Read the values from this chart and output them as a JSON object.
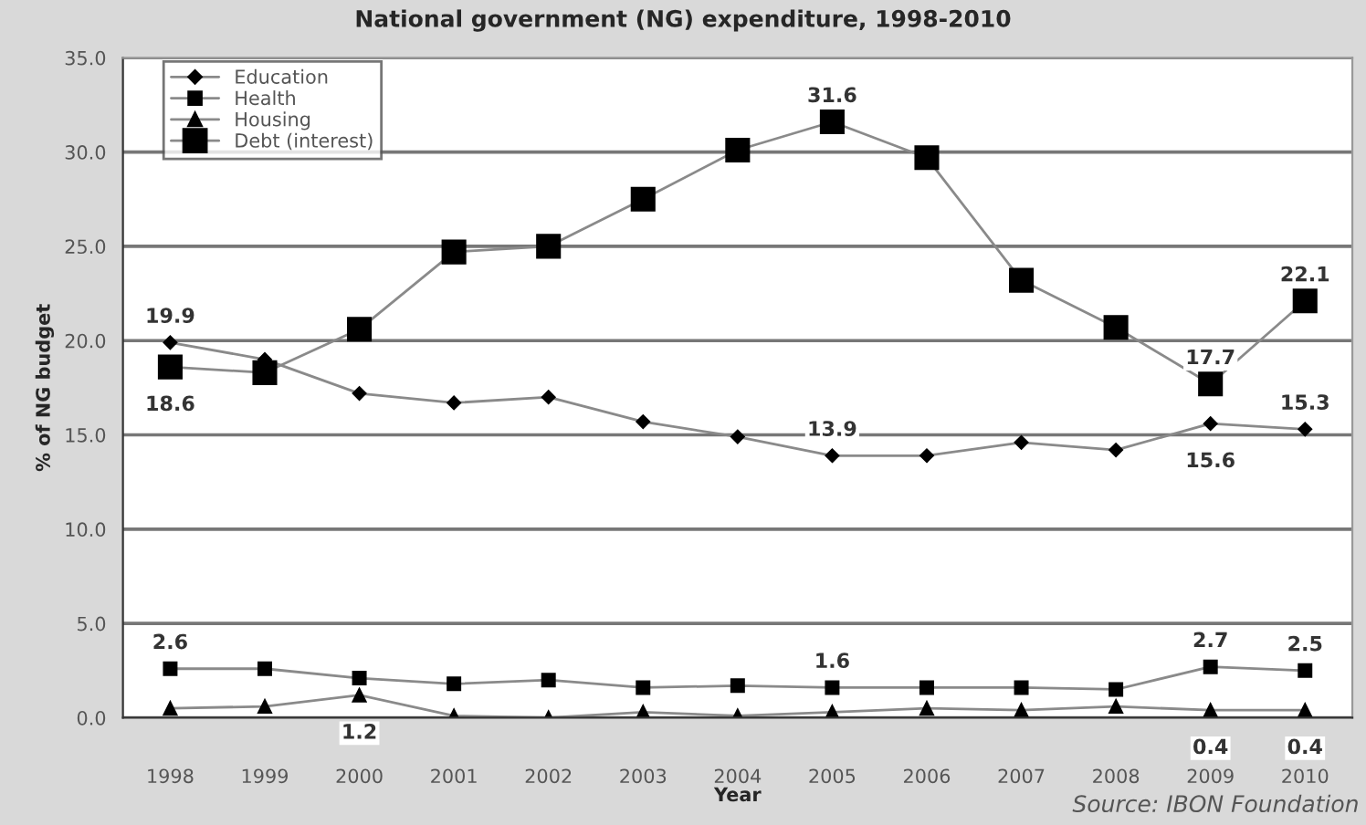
{
  "chart_data": {
    "type": "line",
    "title": "National government (NG) expenditure, 1998-2010",
    "xlabel": "Year",
    "ylabel": "% of NG budget",
    "categories": [
      "1998",
      "1999",
      "2000",
      "2001",
      "2002",
      "2003",
      "2004",
      "2005",
      "2006",
      "2007",
      "2008",
      "2009",
      "2010"
    ],
    "series": [
      {
        "name": "Education",
        "color": "#000000",
        "marker": "diamond",
        "values": [
          19.9,
          19.0,
          17.2,
          16.7,
          17.0,
          15.7,
          14.9,
          13.9,
          13.9,
          14.6,
          14.2,
          15.6,
          15.3
        ],
        "value_labels": [
          "19.9",
          null,
          null,
          null,
          null,
          null,
          null,
          "13.9",
          null,
          null,
          null,
          "15.6",
          "15.3"
        ]
      },
      {
        "name": "Health",
        "color": "#000000",
        "marker": "square",
        "values": [
          2.6,
          2.6,
          2.1,
          1.8,
          2.0,
          1.6,
          1.7,
          1.6,
          1.6,
          1.6,
          1.5,
          2.7,
          2.5
        ],
        "value_labels": [
          "2.6",
          null,
          null,
          null,
          null,
          null,
          null,
          "1.6",
          null,
          null,
          null,
          "2.7",
          "2.5"
        ]
      },
      {
        "name": "Housing",
        "color": "#000000",
        "marker": "triangle",
        "values": [
          0.5,
          0.6,
          1.2,
          0.1,
          0.0,
          0.3,
          0.1,
          0.3,
          0.5,
          0.4,
          0.6,
          0.4,
          0.4
        ],
        "value_labels": [
          null,
          null,
          "1.2",
          null,
          null,
          null,
          null,
          null,
          null,
          null,
          null,
          "0.4",
          "0.4"
        ]
      },
      {
        "name": "Debt (interest)",
        "color": "#000000",
        "marker": "square",
        "values": [
          18.6,
          18.3,
          20.6,
          24.7,
          25.0,
          27.5,
          30.1,
          31.6,
          29.7,
          23.2,
          20.7,
          17.7,
          22.1
        ],
        "value_labels": [
          "18.6",
          null,
          null,
          null,
          null,
          null,
          null,
          "31.6",
          null,
          null,
          null,
          "17.7",
          "22.1"
        ]
      }
    ],
    "ylim": [
      0,
      35
    ],
    "yticks": [
      {
        "value": 0,
        "label": "0.0"
      },
      {
        "value": 5,
        "label": "5.0"
      },
      {
        "value": 10,
        "label": "10.0"
      },
      {
        "value": 15,
        "label": "15.0"
      },
      {
        "value": 20,
        "label": "20.0"
      },
      {
        "value": 25,
        "label": "25.0"
      },
      {
        "value": 30,
        "label": "30.0"
      },
      {
        "value": 35,
        "label": "35.0"
      }
    ],
    "grid": "y",
    "legend": "top left",
    "annotations": [
      "Source: IBON Foundation"
    ]
  }
}
